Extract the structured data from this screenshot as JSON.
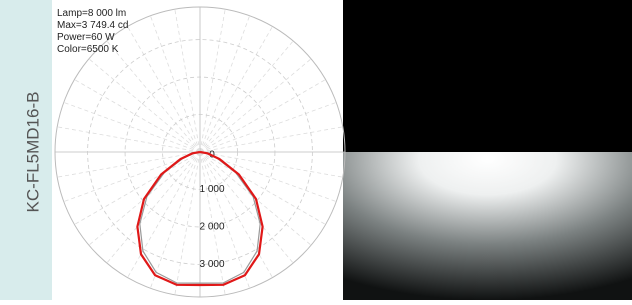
{
  "chart_data": {
    "type": "polar",
    "side_label": "KC-FL5MD16-B",
    "info": [
      "Lamp=8 000 lm",
      "Max=3 749.4 cd",
      "Power=60 W",
      "Color=6500 K"
    ],
    "x": [
      -90,
      -80,
      -70,
      -60,
      -50,
      -40,
      -30,
      -20,
      -10,
      0,
      10,
      20,
      30,
      40,
      50,
      60,
      70,
      80,
      90
    ],
    "series": [
      {
        "color": "#999999",
        "values": [
          0,
          150,
          480,
          1100,
          1850,
          2500,
          3050,
          3420,
          3550,
          3500,
          3550,
          3420,
          3050,
          2500,
          1850,
          1100,
          480,
          150,
          0
        ]
      },
      {
        "color": "#e01818",
        "values": [
          0,
          200,
          550,
          1200,
          1950,
          2600,
          3150,
          3500,
          3600,
          3550,
          3600,
          3500,
          3150,
          2600,
          1950,
          1200,
          550,
          200,
          0
        ]
      }
    ],
    "rlim": [
      0,
      3870
    ],
    "yticks": [
      0,
      {
        "value": 1000,
        "label": "1 000"
      },
      {
        "value": 2000,
        "label": "2 000"
      },
      {
        "value": 3000,
        "label": "3 000"
      }
    ],
    "grid": true
  }
}
